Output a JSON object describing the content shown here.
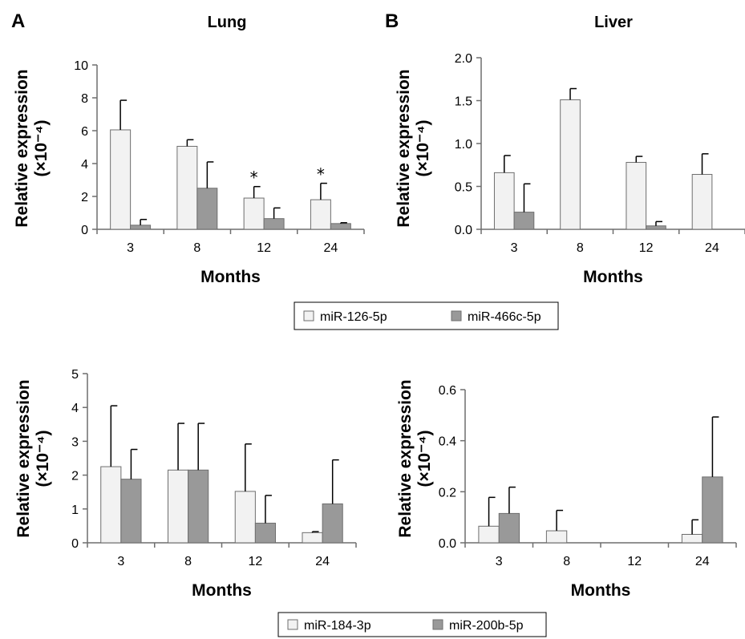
{
  "colors": {
    "light_bar": "#f2f2f2",
    "dark_bar": "#999999",
    "bar_stroke": "#6e6e6e",
    "axis": "#6e6e6e",
    "error_bar": "#000000"
  },
  "legends": [
    {
      "items": [
        {
          "label": "miR-126-5p",
          "color": "#f2f2f2"
        },
        {
          "label": "miR-466c-5p",
          "color": "#999999"
        }
      ]
    },
    {
      "items": [
        {
          "label": "miR-184-3p",
          "color": "#f2f2f2"
        },
        {
          "label": "miR-200b-5p",
          "color": "#999999"
        }
      ]
    }
  ],
  "chart_data": [
    {
      "type": "bar",
      "panel_letter": "A",
      "title": "Lung",
      "xlabel": "Months",
      "ylabel_line1": "Relative expression",
      "ylabel_line2": "(×10⁻⁴)",
      "categories": [
        "3",
        "8",
        "12",
        "24"
      ],
      "ylim": [
        0,
        10
      ],
      "yticks": [
        "0",
        "2",
        "4",
        "6",
        "8",
        "10"
      ],
      "series": [
        {
          "name": "miR-126-5p",
          "values": [
            6.05,
            5.05,
            1.9,
            1.8
          ],
          "errors": [
            1.8,
            0.4,
            0.7,
            1.0
          ]
        },
        {
          "name": "miR-466c-5p",
          "values": [
            0.25,
            2.5,
            0.65,
            0.35
          ],
          "errors": [
            0.35,
            1.6,
            0.65,
            0.05
          ]
        }
      ],
      "annotations": [
        {
          "category": "12",
          "series": "miR-126-5p",
          "text": "*"
        },
        {
          "category": "24",
          "series": "miR-126-5p",
          "text": "*"
        }
      ]
    },
    {
      "type": "bar",
      "panel_letter": "B",
      "title": "Liver",
      "xlabel": "Months",
      "ylabel_line1": "Relative expression",
      "ylabel_line2": "(×10⁻⁴)",
      "categories": [
        "3",
        "8",
        "12",
        "24"
      ],
      "ylim": [
        0,
        2
      ],
      "yticks": [
        "0.0",
        "0.5",
        "1.0",
        "1.5",
        "2.0"
      ],
      "series": [
        {
          "name": "miR-126-5p",
          "values": [
            0.66,
            1.51,
            0.78,
            0.64
          ],
          "errors": [
            0.2,
            0.13,
            0.07,
            0.24
          ]
        },
        {
          "name": "miR-466c-5p",
          "values": [
            0.2,
            0.0,
            0.04,
            0.0
          ],
          "errors": [
            0.33,
            0.0,
            0.05,
            0.0
          ]
        }
      ],
      "annotations": []
    },
    {
      "type": "bar",
      "panel_letter": "",
      "title": "",
      "xlabel": "Months",
      "ylabel_line1": "Relative expression",
      "ylabel_line2": "(×10⁻⁴)",
      "categories": [
        "3",
        "8",
        "12",
        "24"
      ],
      "ylim": [
        0,
        5
      ],
      "yticks": [
        "0",
        "1",
        "2",
        "3",
        "4",
        "5"
      ],
      "series": [
        {
          "name": "miR-184-3p",
          "values": [
            2.25,
            2.15,
            1.52,
            0.3
          ],
          "errors": [
            1.8,
            1.38,
            1.4,
            0.03
          ]
        },
        {
          "name": "miR-200b-5p",
          "values": [
            1.88,
            2.15,
            0.58,
            1.15
          ],
          "errors": [
            0.88,
            1.38,
            0.82,
            1.3
          ]
        }
      ],
      "annotations": []
    },
    {
      "type": "bar",
      "panel_letter": "",
      "title": "",
      "xlabel": "Months",
      "ylabel_line1": "Relative expression",
      "ylabel_line2": "(×10⁻⁴)",
      "categories": [
        "3",
        "8",
        "12",
        "24"
      ],
      "ylim": [
        0,
        0.6
      ],
      "yticks": [
        "0.0",
        "0.2",
        "0.4",
        "0.6"
      ],
      "series": [
        {
          "name": "miR-184-3p",
          "values": [
            0.065,
            0.047,
            0.0,
            0.033
          ],
          "errors": [
            0.113,
            0.08,
            0.0,
            0.057
          ]
        },
        {
          "name": "miR-200b-5p",
          "values": [
            0.115,
            0.0,
            0.0,
            0.258
          ],
          "errors": [
            0.103,
            0.0,
            0.0,
            0.235
          ]
        }
      ],
      "annotations": []
    }
  ]
}
